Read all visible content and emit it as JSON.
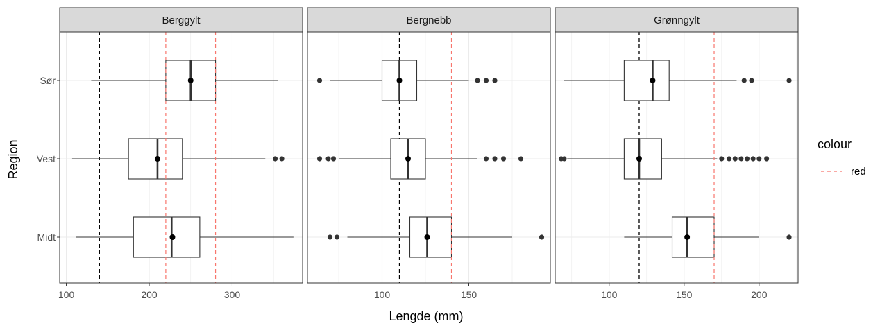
{
  "chart_data": {
    "type": "boxplot",
    "orientation": "horizontal",
    "facets": [
      {
        "name": "Berggylt",
        "xlim": [
          92,
          385
        ],
        "x_ticks": [
          100,
          200,
          300
        ],
        "reference_line": 140,
        "red_lines": [
          220,
          280
        ],
        "boxes": [
          {
            "region": "Sør",
            "whisker_low": 130,
            "q1": 220,
            "median": 250,
            "q3": 280,
            "whisker_high": 355,
            "mean": 250,
            "outliers": []
          },
          {
            "region": "Vest",
            "whisker_low": 107,
            "q1": 175,
            "median": 210,
            "q3": 240,
            "whisker_high": 340,
            "mean": 210,
            "outliers": [
              352,
              360
            ]
          },
          {
            "region": "Midt",
            "whisker_low": 112,
            "q1": 181,
            "median": 227,
            "q3": 261,
            "whisker_high": 374,
            "mean": 228,
            "outliers": []
          }
        ]
      },
      {
        "name": "Bergnebb",
        "xlim": [
          57,
          197
        ],
        "x_ticks": [
          100,
          150
        ],
        "reference_line": 110,
        "red_lines": [
          140
        ],
        "boxes": [
          {
            "region": "Sør",
            "whisker_low": 70,
            "q1": 100,
            "median": 110,
            "q3": 120,
            "whisker_high": 150,
            "mean": 110,
            "outliers": [
              64,
              155,
              160,
              165
            ]
          },
          {
            "region": "Vest",
            "whisker_low": 75,
            "q1": 105,
            "median": 115,
            "q3": 125,
            "whisker_high": 155,
            "mean": 115,
            "outliers": [
              64,
              69,
              72,
              160,
              165,
              170,
              180
            ]
          },
          {
            "region": "Midt",
            "whisker_low": 80,
            "q1": 116,
            "median": 126,
            "q3": 140,
            "whisker_high": 175,
            "mean": 126,
            "outliers": [
              70,
              74,
              192
            ]
          }
        ]
      },
      {
        "name": "Grønngylt",
        "xlim": [
          64,
          226
        ],
        "x_ticks": [
          100,
          150,
          200
        ],
        "reference_line": 120,
        "red_lines": [
          170
        ],
        "boxes": [
          {
            "region": "Sør",
            "whisker_low": 70,
            "q1": 110,
            "median": 129,
            "q3": 140,
            "whisker_high": 185,
            "mean": 129,
            "outliers": [
              190,
              195,
              220
            ]
          },
          {
            "region": "Vest",
            "whisker_low": 72,
            "q1": 110,
            "median": 120,
            "q3": 135,
            "whisker_high": 172,
            "mean": 120,
            "outliers": [
              68,
              70,
              175,
              180,
              184,
              188,
              192,
              196,
              200,
              205
            ]
          },
          {
            "region": "Midt",
            "whisker_low": 110,
            "q1": 142,
            "median": 152,
            "q3": 170,
            "whisker_high": 200,
            "mean": 152,
            "outliers": [
              220
            ]
          }
        ]
      }
    ],
    "regions": [
      "Sør",
      "Vest",
      "Midt"
    ],
    "xlabel": "Lengde (mm)",
    "ylabel": "Region",
    "legend": {
      "title": "colour",
      "items": [
        {
          "label": "red",
          "color": "#f8766d",
          "linetype": "dashed"
        }
      ],
      "position": "right"
    },
    "grid": true,
    "theme": "bw"
  }
}
